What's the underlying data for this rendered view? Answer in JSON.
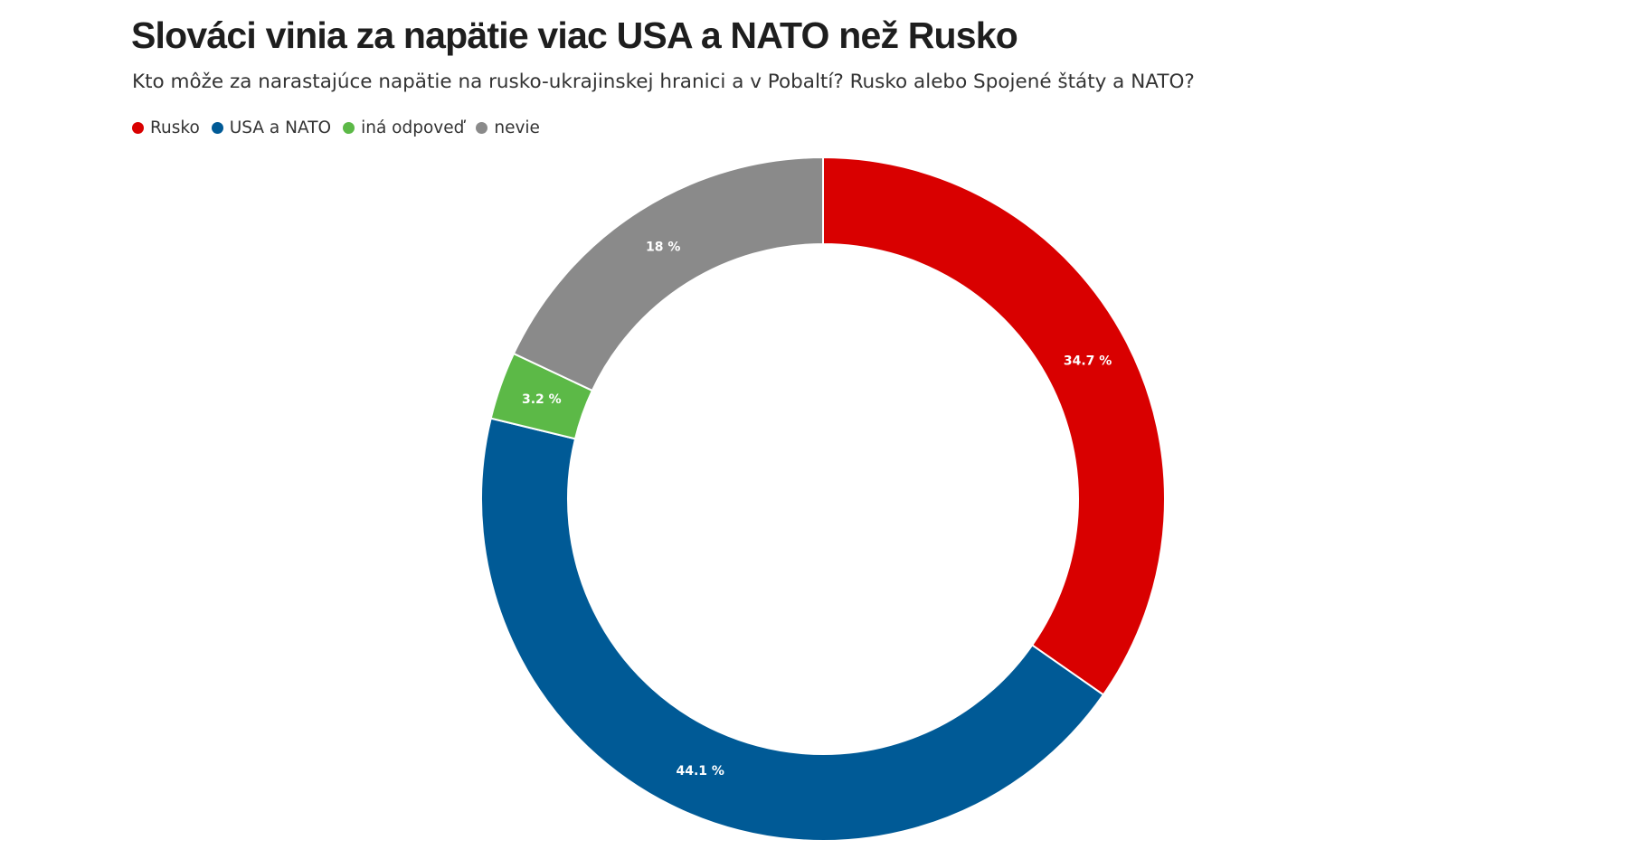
{
  "chart_data": {
    "type": "pie",
    "variant": "donut",
    "title": "Slováci vinia za napätie viac USA a NATO než Rusko",
    "subtitle": "Kto môže za narastajúce napätie na rusko-ukrajinskej hranici a v Pobaltí? Rusko alebo Spojené štáty a NATO?",
    "legend_position": "top-left",
    "categories": [
      "Rusko",
      "USA a NATO",
      "iná odpoveď",
      "nevie"
    ],
    "values": [
      34.7,
      44.1,
      3.2,
      18
    ],
    "labels": [
      "34.7 %",
      "44.1 %",
      "3.2 %",
      "18 %"
    ],
    "colors": [
      "#d90000",
      "#005a96",
      "#5cb947",
      "#8a8a8a"
    ]
  }
}
